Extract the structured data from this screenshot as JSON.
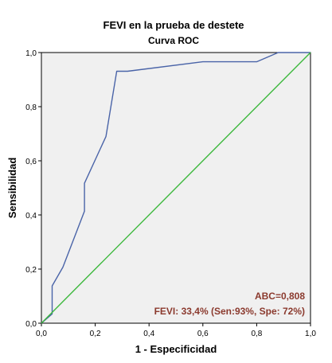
{
  "chart_data": {
    "type": "line",
    "title": "FEVI en la prueba de destete",
    "subtitle": "Curva ROC",
    "xlabel": "1 - Especificidad",
    "ylabel": "Sensibilidad",
    "xlim": [
      0,
      1
    ],
    "ylim": [
      0,
      1
    ],
    "x_ticks": [
      "0,0",
      "0,2",
      "0,4",
      "0,6",
      "0,8",
      "1,0"
    ],
    "y_ticks": [
      "0,0",
      "0,2",
      "0,4",
      "0,6",
      "0,8",
      "1,0"
    ],
    "grid": false,
    "series": [
      {
        "color": "#4a64a8",
        "x": [
          0,
          0.04,
          0.04,
          0.04,
          0.08,
          0.16,
          0.16,
          0.24,
          0.28,
          0.32,
          0.6,
          0.8,
          0.88,
          1.0
        ],
        "y": [
          0,
          0.034,
          0.069,
          0.138,
          0.207,
          0.414,
          0.517,
          0.69,
          0.931,
          0.931,
          0.966,
          0.966,
          1.0,
          1.0
        ]
      },
      {
        "color": "#3cb83c",
        "x": [
          0,
          1
        ],
        "y": [
          0,
          1
        ]
      }
    ],
    "annotations": [
      "ABC=0,808",
      "FEVI: 33,4% (Sen:93%, Spe: 72%)"
    ],
    "annotation_color": "#8b3a2e",
    "background_color": "#f0f0f0"
  }
}
